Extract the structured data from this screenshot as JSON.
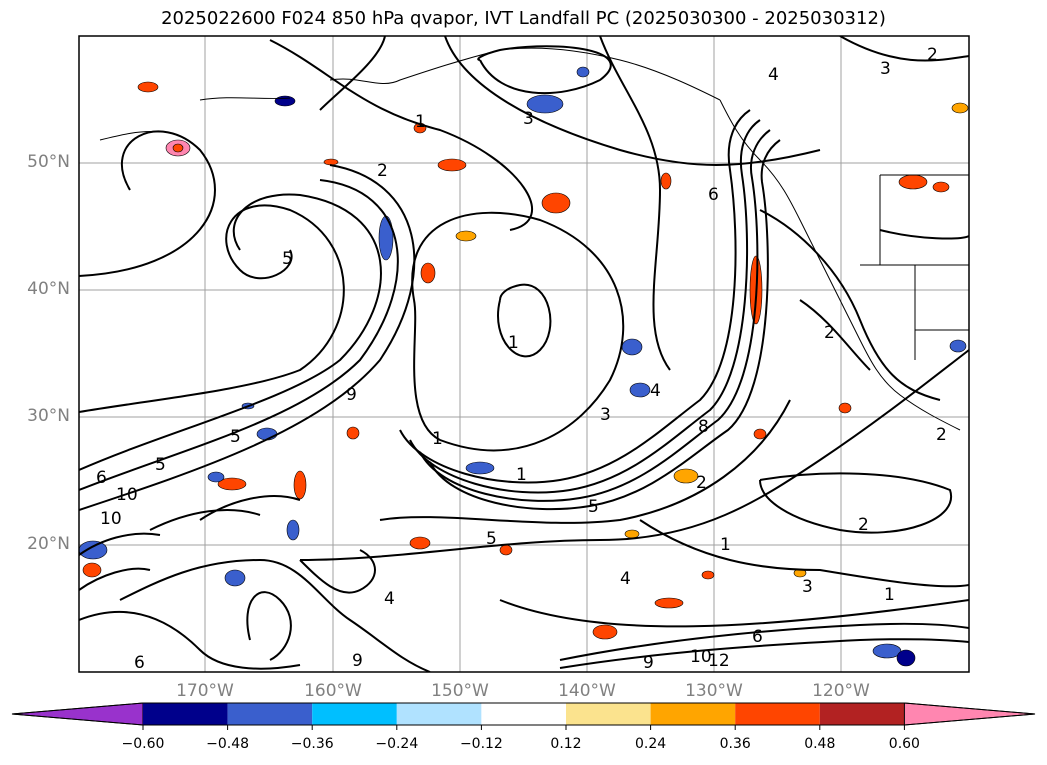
{
  "title": "2025022600 F024 850 hPa qvapor, IVT Landfall PC (2025030300 - 2025030312)",
  "lat_labels": [
    "50°N",
    "40°N",
    "30°N",
    "20°N"
  ],
  "lon_labels": [
    "170°W",
    "160°W",
    "150°W",
    "140°W",
    "130°W",
    "120°W"
  ],
  "colorbar": {
    "ticks": [
      "−0.60",
      "−0.48",
      "−0.36",
      "−0.24",
      "−0.12",
      "0.12",
      "0.24",
      "0.36",
      "0.48",
      "0.60"
    ],
    "colors": [
      "#9932cc",
      "#00008b",
      "#3a5fcd",
      "#00bfff",
      "#b0e2ff",
      "#ffffff",
      "#fbe38e",
      "#ffa500",
      "#ff4500",
      "#b22222",
      "#ff86b0"
    ],
    "extend": "both"
  },
  "contour_labels": [
    "1",
    "2",
    "3",
    "4",
    "5",
    "6",
    "8",
    "9",
    "10",
    "12"
  ],
  "coastline_color": "#000000",
  "gridline_color": "#a0a0a0"
}
